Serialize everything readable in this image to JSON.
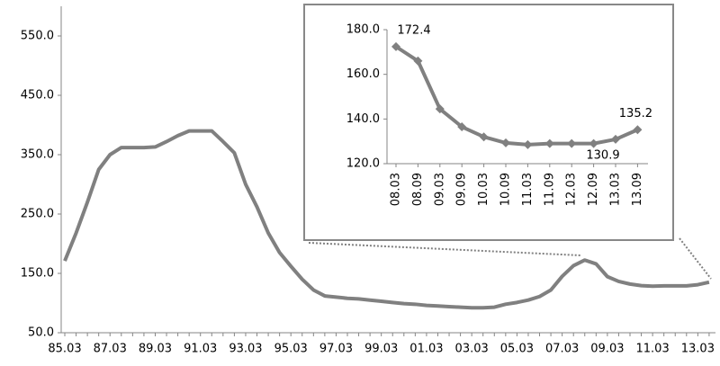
{
  "charts": [
    {
      "type": "line",
      "color": "#808080",
      "categories": [
        "85.03",
        null,
        null,
        null,
        "87.03",
        null,
        null,
        null,
        "89.03",
        null,
        null,
        null,
        "91.03",
        null,
        null,
        null,
        "93.03",
        null,
        null,
        null,
        "95.03",
        null,
        null,
        null,
        "97.03",
        null,
        null,
        null,
        "99.03",
        null,
        null,
        null,
        "01.03",
        null,
        null,
        null,
        "03.03",
        null,
        null,
        null,
        "05.03",
        null,
        null,
        null,
        "07.03",
        null,
        null,
        null,
        "09.03",
        null,
        null,
        null,
        "11.03",
        null,
        null,
        null,
        "13.03",
        null
      ],
      "values": [
        171,
        218,
        270,
        325,
        350,
        362,
        362,
        362,
        363,
        372,
        382,
        390,
        390,
        390,
        372,
        353,
        300,
        262,
        218,
        185,
        162,
        140,
        122,
        112,
        110,
        108,
        107,
        105,
        103,
        101,
        99,
        98,
        96,
        95,
        94,
        93,
        92,
        92,
        93,
        98,
        101,
        105,
        111,
        122,
        145,
        163,
        172.4,
        166,
        144.5,
        136.5,
        132,
        129.3,
        128.5,
        129,
        129,
        129,
        130.9,
        135.2
      ],
      "ylim": [
        50,
        600
      ],
      "yticks": [
        {
          "value": 50,
          "label": "50.0"
        },
        {
          "value": 150,
          "label": "150.0"
        },
        {
          "value": 250,
          "label": "250.0"
        },
        {
          "value": 350,
          "label": "350.0"
        },
        {
          "value": 450,
          "label": "450.0"
        },
        {
          "value": 550,
          "label": "550.0"
        }
      ]
    },
    {
      "type": "line",
      "color": "#808080",
      "markers": true,
      "categories": [
        "08.03",
        "08.09",
        "09.03",
        "09.09",
        "10.03",
        "10.09",
        "11.03",
        "11.09",
        "12.03",
        "12.09",
        "13.03",
        "13.09"
      ],
      "values": [
        172.4,
        166,
        144.5,
        136.5,
        132,
        129.3,
        128.5,
        129,
        129,
        129,
        130.9,
        135.2
      ],
      "value_labels": [
        "172.4",
        null,
        null,
        null,
        null,
        null,
        null,
        null,
        null,
        null,
        "130.9",
        "135.2"
      ],
      "ylim": [
        120,
        180
      ],
      "yticks": [
        {
          "value": 120,
          "label": "120.0"
        },
        {
          "value": 140,
          "label": "140.0"
        },
        {
          "value": 160,
          "label": "160.0"
        },
        {
          "value": 180,
          "label": "180.0"
        }
      ]
    }
  ]
}
